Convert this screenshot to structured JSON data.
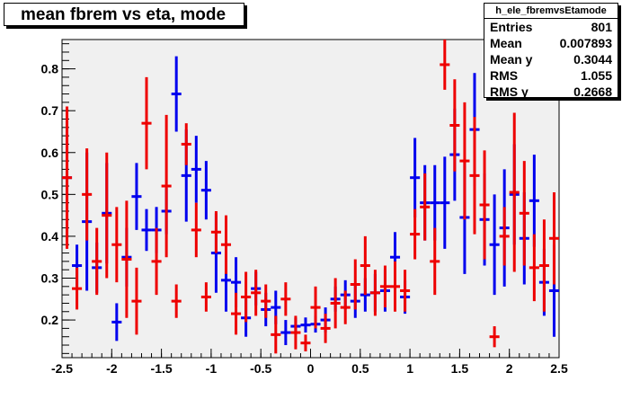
{
  "title": "mean fbrem vs eta, mode",
  "stats": {
    "name": "h_ele_fbremvsEtamode",
    "rows": [
      {
        "label": "Entries",
        "value": "801"
      },
      {
        "label": "Mean",
        "value": "0.007893"
      },
      {
        "label": "Mean y",
        "value": "0.3044"
      },
      {
        "label": "RMS",
        "value": "1.055"
      },
      {
        "label": "RMS y",
        "value": "0.2668"
      }
    ]
  },
  "chart_data": {
    "type": "scatter",
    "title": "mean fbrem vs eta, mode",
    "xlabel": "",
    "ylabel": "",
    "xlim": [
      -2.5,
      2.5
    ],
    "ylim": [
      0.11,
      0.87
    ],
    "x_ticks": [
      -2.5,
      -2,
      -1.5,
      -1,
      -0.5,
      0,
      0.5,
      1,
      1.5,
      2,
      2.5
    ],
    "x_tick_labels": [
      "-2.5",
      "-2",
      "-1.5",
      "-1",
      "-0.5",
      "0",
      "0.5",
      "1",
      "1.5",
      "2",
      "2.5"
    ],
    "y_ticks": [
      0.2,
      0.3,
      0.4,
      0.5,
      0.6,
      0.7,
      0.8
    ],
    "y_tick_labels": [
      "0.2",
      "0.3",
      "0.4",
      "0.5",
      "0.6",
      "0.7",
      "0.8"
    ],
    "frame_fill": "#f0f0f0",
    "bin_half_width": 0.05,
    "series": [
      {
        "color": "#0000ee",
        "points": [
          {
            "x": -2.45,
            "y": 0.54,
            "err": 0.145
          },
          {
            "x": -2.35,
            "y": 0.33,
            "err": 0.05
          },
          {
            "x": -2.25,
            "y": 0.435,
            "err": 0.165
          },
          {
            "x": -2.15,
            "y": 0.325,
            "err": 0.06
          },
          {
            "x": -2.05,
            "y": 0.455,
            "err": 0.12
          },
          {
            "x": -1.95,
            "y": 0.195,
            "err": 0.045
          },
          {
            "x": -1.85,
            "y": 0.35,
            "err": 0.07
          },
          {
            "x": -1.75,
            "y": 0.495,
            "err": 0.08
          },
          {
            "x": -1.65,
            "y": 0.415,
            "err": 0.05
          },
          {
            "x": -1.55,
            "y": 0.415,
            "err": 0.055
          },
          {
            "x": -1.45,
            "y": 0.46,
            "err": 0.055
          },
          {
            "x": -1.35,
            "y": 0.74,
            "err": 0.09
          },
          {
            "x": -1.25,
            "y": 0.545,
            "err": 0.11
          },
          {
            "x": -1.15,
            "y": 0.56,
            "err": 0.08
          },
          {
            "x": -1.05,
            "y": 0.51,
            "err": 0.07
          },
          {
            "x": -0.95,
            "y": 0.36,
            "err": 0.095
          },
          {
            "x": -0.85,
            "y": 0.295,
            "err": 0.075
          },
          {
            "x": -0.75,
            "y": 0.29,
            "err": 0.06
          },
          {
            "x": -0.65,
            "y": 0.205,
            "err": 0.045
          },
          {
            "x": -0.55,
            "y": 0.275,
            "err": 0.04
          },
          {
            "x": -0.45,
            "y": 0.225,
            "err": 0.04
          },
          {
            "x": -0.35,
            "y": 0.23,
            "err": 0.04
          },
          {
            "x": -0.25,
            "y": 0.17,
            "err": 0.03
          },
          {
            "x": -0.15,
            "y": 0.185,
            "err": 0.02
          },
          {
            "x": -0.05,
            "y": 0.188,
            "err": 0.018
          },
          {
            "x": 0.05,
            "y": 0.19,
            "err": 0.02
          },
          {
            "x": 0.15,
            "y": 0.2,
            "err": 0.03
          },
          {
            "x": 0.25,
            "y": 0.25,
            "err": 0.03
          },
          {
            "x": 0.35,
            "y": 0.26,
            "err": 0.035
          },
          {
            "x": 0.45,
            "y": 0.245,
            "err": 0.04
          },
          {
            "x": 0.55,
            "y": 0.26,
            "err": 0.04
          },
          {
            "x": 0.65,
            "y": 0.265,
            "err": 0.045
          },
          {
            "x": 0.75,
            "y": 0.27,
            "err": 0.05
          },
          {
            "x": 0.85,
            "y": 0.35,
            "err": 0.06
          },
          {
            "x": 0.95,
            "y": 0.255,
            "err": 0.04
          },
          {
            "x": 1.05,
            "y": 0.54,
            "err": 0.095
          },
          {
            "x": 1.15,
            "y": 0.48,
            "err": 0.09
          },
          {
            "x": 1.25,
            "y": 0.48,
            "err": 0.09
          },
          {
            "x": 1.35,
            "y": 0.48,
            "err": 0.11
          },
          {
            "x": 1.45,
            "y": 0.595,
            "err": 0.11
          },
          {
            "x": 1.55,
            "y": 0.445,
            "err": 0.135
          },
          {
            "x": 1.65,
            "y": 0.655,
            "err": 0.135
          },
          {
            "x": 1.75,
            "y": 0.44,
            "err": 0.11
          },
          {
            "x": 1.85,
            "y": 0.38,
            "err": 0.12
          },
          {
            "x": 1.95,
            "y": 0.42,
            "err": 0.14
          },
          {
            "x": 2.05,
            "y": 0.5,
            "err": 0.12
          },
          {
            "x": 2.15,
            "y": 0.395,
            "err": 0.11
          },
          {
            "x": 2.25,
            "y": 0.485,
            "err": 0.11
          },
          {
            "x": 2.35,
            "y": 0.29,
            "err": 0.08
          },
          {
            "x": 2.45,
            "y": 0.27,
            "err": 0.11
          }
        ]
      },
      {
        "color": "#ee0000",
        "points": [
          {
            "x": -2.45,
            "y": 0.54,
            "err": 0.17
          },
          {
            "x": -2.35,
            "y": 0.275,
            "err": 0.05
          },
          {
            "x": -2.25,
            "y": 0.5,
            "err": 0.11
          },
          {
            "x": -2.15,
            "y": 0.34,
            "err": 0.08
          },
          {
            "x": -2.05,
            "y": 0.45,
            "err": 0.15
          },
          {
            "x": -1.95,
            "y": 0.38,
            "err": 0.09
          },
          {
            "x": -1.85,
            "y": 0.345,
            "err": 0.14
          },
          {
            "x": -1.75,
            "y": 0.245,
            "err": 0.08
          },
          {
            "x": -1.65,
            "y": 0.67,
            "err": 0.11
          },
          {
            "x": -1.55,
            "y": 0.34,
            "err": 0.08
          },
          {
            "x": -1.45,
            "y": 0.52,
            "err": 0.17
          },
          {
            "x": -1.35,
            "y": 0.245,
            "err": 0.04
          },
          {
            "x": -1.25,
            "y": 0.62,
            "err": 0.05
          },
          {
            "x": -1.15,
            "y": 0.415,
            "err": 0.065
          },
          {
            "x": -1.05,
            "y": 0.255,
            "err": 0.035
          },
          {
            "x": -0.95,
            "y": 0.41,
            "err": 0.05
          },
          {
            "x": -0.85,
            "y": 0.38,
            "err": 0.07
          },
          {
            "x": -0.75,
            "y": 0.215,
            "err": 0.05
          },
          {
            "x": -0.65,
            "y": 0.255,
            "err": 0.06
          },
          {
            "x": -0.55,
            "y": 0.265,
            "err": 0.055
          },
          {
            "x": -0.45,
            "y": 0.245,
            "err": 0.04
          },
          {
            "x": -0.35,
            "y": 0.165,
            "err": 0.045
          },
          {
            "x": -0.25,
            "y": 0.25,
            "err": 0.04
          },
          {
            "x": -0.15,
            "y": 0.17,
            "err": 0.04
          },
          {
            "x": -0.05,
            "y": 0.145,
            "err": 0.02
          },
          {
            "x": 0.05,
            "y": 0.23,
            "err": 0.05
          },
          {
            "x": 0.15,
            "y": 0.18,
            "err": 0.035
          },
          {
            "x": 0.25,
            "y": 0.24,
            "err": 0.06
          },
          {
            "x": 0.35,
            "y": 0.23,
            "err": 0.04
          },
          {
            "x": 0.45,
            "y": 0.285,
            "err": 0.06
          },
          {
            "x": 0.55,
            "y": 0.33,
            "err": 0.07
          },
          {
            "x": 0.65,
            "y": 0.265,
            "err": 0.055
          },
          {
            "x": 0.75,
            "y": 0.28,
            "err": 0.05
          },
          {
            "x": 0.85,
            "y": 0.28,
            "err": 0.06
          },
          {
            "x": 0.95,
            "y": 0.27,
            "err": 0.05
          },
          {
            "x": 1.05,
            "y": 0.405,
            "err": 0.06
          },
          {
            "x": 1.15,
            "y": 0.47,
            "err": 0.08
          },
          {
            "x": 1.25,
            "y": 0.34,
            "err": 0.08
          },
          {
            "x": 1.35,
            "y": 0.81,
            "err": 0.06
          },
          {
            "x": 1.45,
            "y": 0.665,
            "err": 0.11
          },
          {
            "x": 1.55,
            "y": 0.58,
            "err": 0.14
          },
          {
            "x": 1.65,
            "y": 0.545,
            "err": 0.14
          },
          {
            "x": 1.75,
            "y": 0.475,
            "err": 0.13
          },
          {
            "x": 1.85,
            "y": 0.16,
            "err": 0.025
          },
          {
            "x": 1.95,
            "y": 0.4,
            "err": 0.07
          },
          {
            "x": 2.05,
            "y": 0.505,
            "err": 0.19
          },
          {
            "x": 2.15,
            "y": 0.455,
            "err": 0.125
          },
          {
            "x": 2.25,
            "y": 0.325,
            "err": 0.08
          },
          {
            "x": 2.35,
            "y": 0.33,
            "err": 0.11
          },
          {
            "x": 2.45,
            "y": 0.395,
            "err": 0.11
          }
        ]
      }
    ]
  }
}
